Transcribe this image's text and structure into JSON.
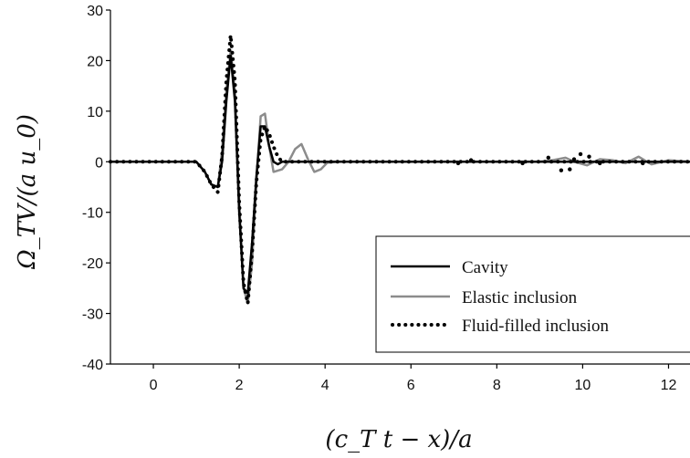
{
  "chart_data": {
    "type": "line",
    "title": "",
    "xlabel": "(c_T t − x)/a",
    "ylabel": "Ω_TV/(a u_0)",
    "xlim": [
      -1,
      12.5
    ],
    "ylim": [
      -40,
      30
    ],
    "x_ticks": [
      0,
      2,
      4,
      6,
      8,
      10,
      12
    ],
    "y_ticks": [
      -40,
      -30,
      -20,
      -10,
      0,
      10,
      20,
      30
    ],
    "grid": false,
    "legend_position": "bottom-right",
    "series": [
      {
        "name": "Cavity",
        "style": "solid",
        "color": "#000000",
        "x": [
          -1,
          1.0,
          1.2,
          1.35,
          1.5,
          1.6,
          1.7,
          1.8,
          1.9,
          2.0,
          2.1,
          2.2,
          2.3,
          2.4,
          2.5,
          2.6,
          2.7,
          2.8,
          2.9,
          3.0,
          3.2,
          3.5,
          4.0,
          12.5
        ],
        "y": [
          0,
          0,
          -2,
          -4.5,
          -5,
          0,
          12,
          21,
          12,
          -10,
          -25,
          -26,
          -16,
          -3,
          7,
          7,
          3,
          0,
          -0.5,
          0,
          0,
          0,
          0,
          0
        ]
      },
      {
        "name": "Elastic inclusion",
        "style": "solid",
        "color": "#8c8c8c",
        "x": [
          -1,
          1.0,
          1.2,
          1.35,
          1.5,
          1.6,
          1.7,
          1.8,
          1.9,
          2.0,
          2.1,
          2.2,
          2.3,
          2.4,
          2.5,
          2.6,
          2.7,
          2.8,
          3.0,
          3.15,
          3.3,
          3.45,
          3.6,
          3.75,
          3.9,
          4.05,
          4.3,
          9.0,
          9.3,
          9.6,
          9.8,
          10.1,
          10.4,
          10.7,
          11.0,
          11.3,
          11.6,
          12.0,
          12.5
        ],
        "y": [
          0,
          0,
          -2,
          -4.5,
          -5,
          2,
          14,
          22,
          14,
          -8,
          -25,
          -28,
          -20,
          -4,
          9,
          9.5,
          3,
          -2,
          -1.5,
          0,
          2.5,
          3.5,
          0.5,
          -2,
          -1.5,
          -0.2,
          0,
          0,
          0.3,
          0.8,
          0,
          -0.7,
          0.5,
          0.3,
          -0.3,
          1.0,
          -0.5,
          0.3,
          0
        ]
      },
      {
        "name": "Fluid-filled inclusion",
        "style": "dotted",
        "color": "#000000",
        "x": [
          -1,
          1.0,
          1.2,
          1.35,
          1.5,
          1.6,
          1.7,
          1.8,
          1.9,
          2.0,
          2.1,
          2.2,
          2.3,
          2.4,
          2.5,
          2.6,
          2.7,
          2.8,
          2.9,
          3.0,
          3.2,
          3.5,
          4.0,
          12.5
        ],
        "y": [
          0,
          0,
          -2,
          -4.5,
          -6,
          1,
          16,
          25,
          16,
          -8,
          -24,
          -28,
          -18,
          -4,
          4.5,
          7,
          5.5,
          3,
          1,
          0,
          0,
          0,
          0,
          0
        ]
      }
    ],
    "scatter_points": [
      {
        "x": 7.1,
        "y": -0.3
      },
      {
        "x": 7.4,
        "y": 0.3
      },
      {
        "x": 8.6,
        "y": -0.3
      },
      {
        "x": 9.2,
        "y": 0.8
      },
      {
        "x": 9.5,
        "y": -1.7
      },
      {
        "x": 9.7,
        "y": -1.5
      },
      {
        "x": 9.8,
        "y": 0.5
      },
      {
        "x": 9.95,
        "y": 1.5
      },
      {
        "x": 10.15,
        "y": 1.0
      },
      {
        "x": 10.4,
        "y": -0.3
      },
      {
        "x": 11.4,
        "y": -0.3
      }
    ]
  }
}
